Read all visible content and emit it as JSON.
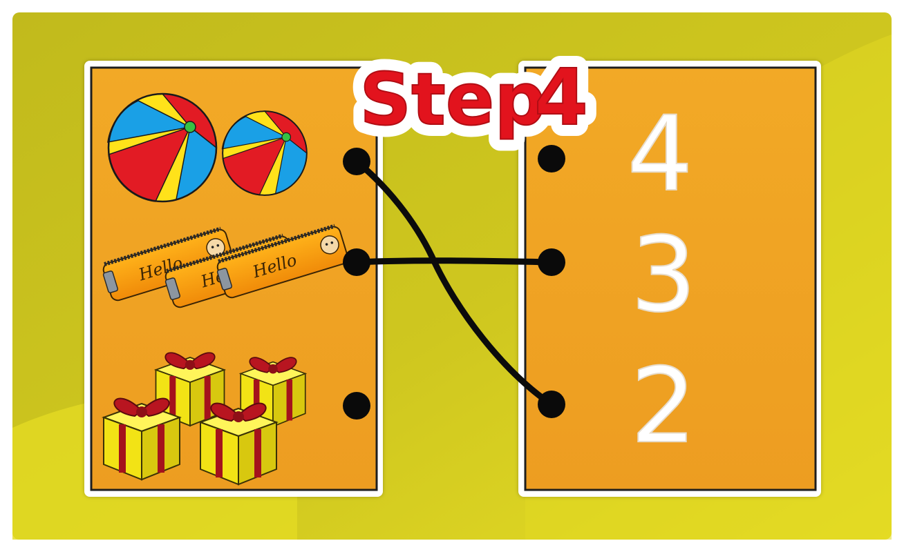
{
  "title": {
    "prefix": "Step",
    "number": "4"
  },
  "left_panel": {
    "groups": [
      {
        "item": "beach-ball",
        "count": 2,
        "label": ""
      },
      {
        "item": "pencil-case",
        "count": 3,
        "label": "Hello"
      },
      {
        "item": "gift-box",
        "count": 4,
        "label": ""
      }
    ]
  },
  "right_panel": {
    "numbers": [
      "4",
      "3",
      "2"
    ]
  },
  "connections": [
    {
      "from": "left-0",
      "to": "right-2"
    },
    {
      "from": "left-1",
      "to": "right-1"
    }
  ],
  "colors": {
    "background": "#c8c41c",
    "background_light": "#e4dc22",
    "panel": "#f0a322",
    "panel_border": "#1e1e1e",
    "title_red": "#e2131d",
    "line": "#0b0b0b",
    "number": "#ffffff"
  }
}
